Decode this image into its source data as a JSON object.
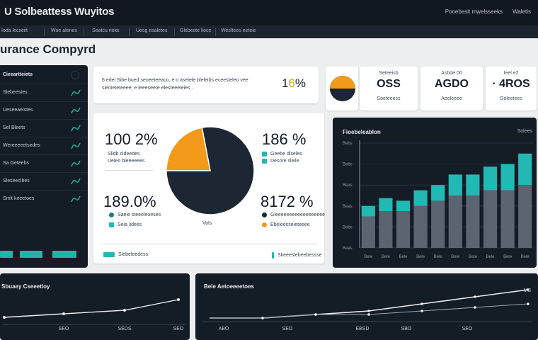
{
  "app": {
    "title": "U Solbeattess Wuyitos",
    "top_right": [
      "Pooebesit mwelsseeks",
      "Waletis"
    ]
  },
  "nav": {
    "items": [
      "Ioda lecseiit",
      "Woe alenes",
      "Seatcu rieks",
      "Uesg esaletes",
      "Glebeste lioce",
      "Wesltees eeteie"
    ]
  },
  "page": {
    "title": "urance Compyrd"
  },
  "sidebar": {
    "header": "Cieeartteiets",
    "items": [
      "Slebeestes",
      "Ueseeaeistes",
      "Sel Bleets",
      "Wereeeeetsedes",
      "Sa Geteebs",
      "Sleseeclbes",
      "Smlt keeetoes"
    ],
    "buttons": [
      "",
      "",
      ""
    ]
  },
  "intro": {
    "text": "6 edel Sibe bued seoeeteeaco, e o aseiele bleleibs eceesleleo vee sienieteteeee, e leeeseete elesteeeieies .",
    "pct_prefix": "1",
    "pct_accent": "6",
    "pct_suffix": "%"
  },
  "kpis": [
    {
      "value": "",
      "label": ""
    },
    {
      "value": "OSS",
      "label": "Soeteeess"
    },
    {
      "value": "AGDO",
      "label": "Aeeleeee"
    },
    {
      "value": "· 4ROS",
      "label": "Goleetees"
    }
  ],
  "kpi_labels_top": [
    "Seteeisb",
    "Asbde 00",
    "Ieel e2"
  ],
  "pie_card": {
    "tl_value": "100 2%",
    "tl_legend": [
      "Slidb cldeedes",
      "Ueleo bleeeeees"
    ],
    "tr_value": "186 %",
    "tr_legend": [
      "Geebe dlseles",
      "Desore sleile"
    ],
    "bl_value": "189.0%",
    "bl_legend": [
      "Saeie steeeleoeses",
      "Seia lidees"
    ],
    "br_value": "8172 %",
    "br_legend": [
      "Gleeeeeeeeeeeeeeeeee",
      "Ebeleesseieteeee"
    ],
    "center_label": "Vols",
    "footer": [
      "Slebeleedess",
      "Skeeeslebeebessse"
    ]
  },
  "chart_data": [
    {
      "type": "pie",
      "values": [
        22,
        78
      ],
      "colors": [
        "#f39a1b",
        "#1d2633"
      ]
    },
    {
      "type": "bar",
      "title": "Fioebeleablon",
      "legend_label": "Solees",
      "y_ticks": [
        "Bebs",
        "Bebs",
        "Beas",
        "Beas",
        "Bebs",
        "Beas"
      ],
      "x_ticks": [
        "Bele",
        "Bele",
        "Bele",
        "Bele",
        "Bele",
        "Bele",
        "Bele",
        "Bele",
        "Bele",
        "Bele"
      ],
      "series": [
        {
          "values": [
            12,
            14,
            14,
            16,
            18,
            20,
            20,
            22,
            22,
            24
          ]
        },
        {
          "values": [
            4,
            5,
            4,
            6,
            6,
            8,
            8,
            9,
            10,
            12
          ]
        }
      ],
      "ylim": [
        0,
        40
      ],
      "colors": [
        "#5b6470",
        "#22b9b5"
      ]
    },
    {
      "type": "line",
      "title": "Sbuaey Cseeetloy",
      "x_ticks": [
        "",
        "SEO",
        "SEDS",
        "SEO"
      ],
      "values": [
        2,
        3,
        4,
        7
      ],
      "ylim": [
        0,
        10
      ]
    },
    {
      "type": "line",
      "title": "Bele Aetoeeeetoes",
      "x_ticks": [
        "ABO",
        "SEO",
        "EBSD",
        "SBO",
        "SEO"
      ],
      "series": [
        {
          "values": [
            1,
            1,
            2,
            3,
            5,
            7,
            9
          ]
        },
        {
          "values": [
            1,
            1,
            2,
            2,
            3,
            4,
            5
          ]
        }
      ],
      "end_label": "MS",
      "ylim": [
        0,
        10
      ]
    }
  ],
  "colors": {
    "accent": "#f39a1b",
    "teal": "#1fb6a8",
    "dark": "#141c26"
  }
}
